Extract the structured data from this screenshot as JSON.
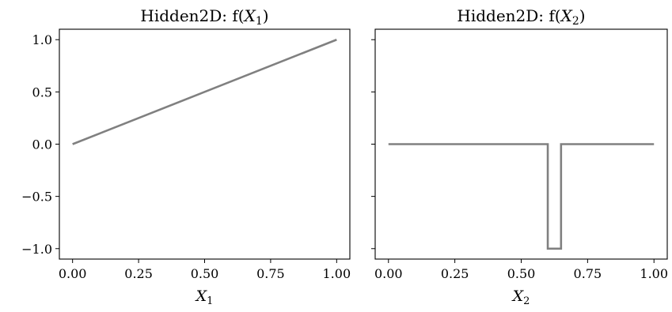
{
  "chart_data": [
    {
      "type": "line",
      "title": {
        "prefix": "Hidden2D: f(",
        "var": "X",
        "sub": "1",
        "suffix": ")"
      },
      "xlabel": {
        "var": "X",
        "sub": "1"
      },
      "ylabel": "",
      "xlim": [
        -0.05,
        1.05
      ],
      "ylim": [
        -1.1,
        1.1
      ],
      "xticks": [
        0.0,
        0.25,
        0.5,
        0.75,
        1.0
      ],
      "xtick_labels": [
        "0.00",
        "0.25",
        "0.50",
        "0.75",
        "1.00"
      ],
      "yticks": [
        1.0,
        0.5,
        0.0,
        -0.5,
        -1.0
      ],
      "ytick_labels": [
        "1.0",
        "0.5",
        "0.0",
        "−0.5",
        "−1.0"
      ],
      "show_ytick_labels": true,
      "grid": false,
      "color": "#808080",
      "series": [
        {
          "x": [
            0.0,
            1.0
          ],
          "y": [
            0.0,
            1.0
          ]
        }
      ]
    },
    {
      "type": "line",
      "title": {
        "prefix": "Hidden2D: f(",
        "var": "X",
        "sub": "2",
        "suffix": ")"
      },
      "xlabel": {
        "var": "X",
        "sub": "2"
      },
      "ylabel": "",
      "xlim": [
        -0.05,
        1.05
      ],
      "ylim": [
        -1.1,
        1.1
      ],
      "xticks": [
        0.0,
        0.25,
        0.5,
        0.75,
        1.0
      ],
      "xtick_labels": [
        "0.00",
        "0.25",
        "0.50",
        "0.75",
        "1.00"
      ],
      "yticks": [
        1.0,
        0.5,
        0.0,
        -0.5,
        -1.0
      ],
      "ytick_labels": [
        "",
        "",
        "",
        "",
        ""
      ],
      "show_ytick_labels": false,
      "grid": false,
      "color": "#808080",
      "series": [
        {
          "x": [
            0.0,
            0.6,
            0.6,
            0.65,
            0.65,
            1.0
          ],
          "y": [
            0.0,
            0.0,
            -1.0,
            -1.0,
            0.0,
            0.0
          ]
        }
      ]
    }
  ]
}
